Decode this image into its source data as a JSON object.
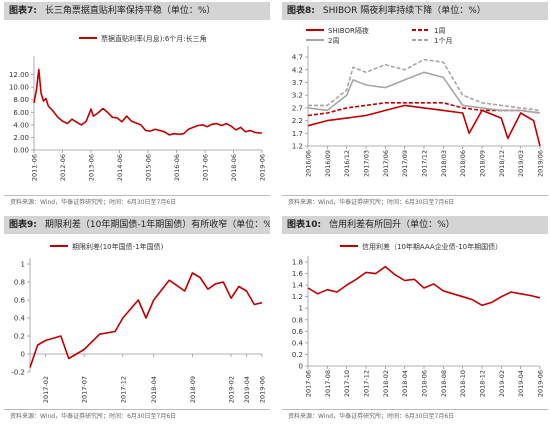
{
  "panels": [
    {
      "number": "图表7:",
      "title": "长三角票据直贴利率保持平稳（单位：%）",
      "source": "资料来源：Wind，华泰证券研究所；时间：6月30日至7月6日"
    },
    {
      "number": "图表8:",
      "title": "SHIBOR 隔夜利率持续下降（单位：%）",
      "source": "资料来源：Wind，华泰证券研究所；时间：6月30日至7月6日"
    },
    {
      "number": "图表9:",
      "title": "期限利差（10年期国债-1年期国债）有所收窄（单位：%）",
      "source": "资料来源：Wind，华泰证券研究所；时间：6月30日至7月6日"
    },
    {
      "number": "图表10:",
      "title": "信用利差有所回升（单位：%）",
      "source": "资料来源：Wind，华泰证券研究所；时间：6月30日至7月6日"
    }
  ],
  "colors": {
    "red": "#c00000",
    "gray": "#a6a6a6",
    "axis": "#999999",
    "grid": "#d9d9d9"
  },
  "chart_data": [
    {
      "type": "line",
      "title": "",
      "legend_position": "top-center",
      "ylim": [
        0,
        14
      ],
      "yticks": [
        "0.00",
        "2.00",
        "4.00",
        "6.00",
        "8.00",
        "10.00",
        "12.00"
      ],
      "xticks": [
        "2011-06",
        "2012-06",
        "2013-06",
        "2014-06",
        "2015-06",
        "2016-06",
        "2017-06",
        "2018-06",
        "2019-06"
      ],
      "series": [
        {
          "name": "票据直贴利率(月息):6个月:长三角",
          "color": "#c00000",
          "x": [
            "2011-06",
            "2011-07",
            "2011-08",
            "2011-09",
            "2011-10",
            "2011-11",
            "2011-12",
            "2012-02",
            "2012-04",
            "2012-06",
            "2012-08",
            "2012-10",
            "2012-12",
            "2013-02",
            "2013-04",
            "2013-06",
            "2013-07",
            "2013-09",
            "2013-11",
            "2014-01",
            "2014-03",
            "2014-05",
            "2014-07",
            "2014-09",
            "2014-11",
            "2015-01",
            "2015-03",
            "2015-05",
            "2015-07",
            "2015-09",
            "2015-11",
            "2016-01",
            "2016-03",
            "2016-05",
            "2016-07",
            "2016-09",
            "2016-11",
            "2017-01",
            "2017-03",
            "2017-05",
            "2017-07",
            "2017-09",
            "2017-11",
            "2018-01",
            "2018-03",
            "2018-05",
            "2018-07",
            "2018-09",
            "2018-11",
            "2019-01",
            "2019-03",
            "2019-05",
            "2019-06"
          ],
          "values": [
            7.5,
            9.5,
            12.8,
            9.0,
            7.8,
            8.2,
            7.0,
            6.2,
            5.2,
            4.6,
            4.2,
            4.9,
            4.4,
            4.0,
            4.6,
            6.5,
            5.4,
            5.9,
            6.6,
            6.0,
            5.2,
            5.1,
            4.5,
            5.4,
            4.6,
            4.3,
            4.0,
            3.1,
            3.0,
            3.3,
            3.1,
            2.9,
            2.4,
            2.6,
            2.5,
            2.6,
            3.3,
            3.6,
            3.9,
            4.0,
            3.7,
            4.1,
            4.2,
            3.9,
            4.2,
            3.8,
            3.2,
            3.6,
            2.9,
            3.1,
            2.8,
            2.7,
            2.7
          ]
        }
      ]
    },
    {
      "type": "line",
      "title": "",
      "legend_position": "top",
      "ylim": [
        1.2,
        4.9
      ],
      "yticks": [
        "1.2",
        "1.7",
        "2.2",
        "2.7",
        "3.2",
        "3.7",
        "4.2",
        "4.7"
      ],
      "xticks": [
        "2016/06",
        "2016/09",
        "2016/12",
        "2017/03",
        "2017/06",
        "2017/09",
        "2017/12",
        "2018/03",
        "2018/06",
        "2018/09",
        "2018/12",
        "2019/03",
        "2019/06"
      ],
      "series": [
        {
          "name": "SHIBOR隔夜",
          "color": "#c00000",
          "dash": "solid",
          "x": [
            "2016/06",
            "2016/09",
            "2016/12",
            "2017/03",
            "2017/06",
            "2017/09",
            "2017/12",
            "2018/03",
            "2018/06",
            "2018/07",
            "2018/09",
            "2018/12",
            "2019/01",
            "2019/03",
            "2019/05",
            "2019/06"
          ],
          "values": [
            2.0,
            2.2,
            2.3,
            2.4,
            2.6,
            2.8,
            2.7,
            2.6,
            2.5,
            1.7,
            2.6,
            2.3,
            1.5,
            2.5,
            2.2,
            1.2
          ]
        },
        {
          "name": "1周",
          "color": "#c00000",
          "dash": "dashed",
          "x": [
            "2016/06",
            "2016/09",
            "2016/12",
            "2017/03",
            "2017/06",
            "2017/09",
            "2017/12",
            "2018/03",
            "2018/06",
            "2018/09",
            "2018/12",
            "2019/03",
            "2019/06"
          ],
          "values": [
            2.4,
            2.5,
            2.7,
            2.8,
            2.9,
            2.9,
            2.9,
            2.9,
            2.7,
            2.6,
            2.6,
            2.6,
            2.5
          ]
        },
        {
          "name": "2周",
          "color": "#a6a6a6",
          "dash": "solid",
          "x": [
            "2016/06",
            "2016/09",
            "2016/12",
            "2017/01",
            "2017/03",
            "2017/06",
            "2017/09",
            "2017/12",
            "2018/03",
            "2018/06",
            "2018/09",
            "2018/12",
            "2019/03",
            "2019/06"
          ],
          "values": [
            2.7,
            2.6,
            3.2,
            3.8,
            3.6,
            3.5,
            3.8,
            4.1,
            3.9,
            2.8,
            2.7,
            2.6,
            2.6,
            2.5
          ]
        },
        {
          "name": "1个月",
          "color": "#a6a6a6",
          "dash": "dashed",
          "x": [
            "2016/06",
            "2016/09",
            "2016/12",
            "2017/01",
            "2017/03",
            "2017/06",
            "2017/09",
            "2017/12",
            "2018/03",
            "2018/06",
            "2018/09",
            "2018/12",
            "2019/03",
            "2019/06"
          ],
          "values": [
            2.8,
            2.8,
            3.4,
            4.3,
            4.1,
            4.4,
            4.2,
            4.6,
            4.5,
            3.2,
            2.9,
            2.8,
            2.7,
            2.6
          ]
        }
      ]
    },
    {
      "type": "line",
      "title": "",
      "legend_position": "top-left",
      "ylim": [
        -0.2,
        1.0
      ],
      "yticks": [
        "-0.2",
        "0",
        "0.2",
        "0.4",
        "0.6",
        "0.8",
        "1"
      ],
      "xticks": [
        "2017-02",
        "2017-07",
        "2017-12",
        "2018-04",
        "2018-09",
        "2019-02",
        "2019-04",
        "2019-06"
      ],
      "series": [
        {
          "name": "期限利差(10年国债-1年国债)",
          "color": "#c00000",
          "x": [
            "2016-12",
            "2017-01",
            "2017-02",
            "2017-04",
            "2017-05",
            "2017-07",
            "2017-09",
            "2017-11",
            "2017-12",
            "2018-02",
            "2018-03",
            "2018-04",
            "2018-06",
            "2018-08",
            "2018-09",
            "2018-10",
            "2018-11",
            "2018-12",
            "2019-01",
            "2019-02",
            "2019-03",
            "2019-04",
            "2019-05",
            "2019-06"
          ],
          "values": [
            -0.15,
            0.1,
            0.15,
            0.2,
            -0.05,
            0.05,
            0.22,
            0.25,
            0.4,
            0.6,
            0.4,
            0.6,
            0.82,
            0.7,
            0.9,
            0.85,
            0.72,
            0.78,
            0.8,
            0.62,
            0.75,
            0.7,
            0.55,
            0.57
          ]
        }
      ]
    },
    {
      "type": "line",
      "title": "",
      "legend_position": "top-center",
      "ylim": [
        0,
        1.8
      ],
      "yticks": [
        "0",
        "0.2",
        "0.4",
        "0.6",
        "0.8",
        "1",
        "1.2",
        "1.4",
        "1.6",
        "1.8"
      ],
      "xticks": [
        "2017-06",
        "2017-08",
        "2017-10",
        "2017-12",
        "2018-02",
        "2018-04",
        "2018-06",
        "2018-08",
        "2018-10",
        "2018-12",
        "2019-02",
        "2019-04",
        "2019-06"
      ],
      "series": [
        {
          "name": "信用利差（10年期AAA企业债-10年期国债）",
          "color": "#c00000",
          "x": [
            "2017-06",
            "2017-07",
            "2017-08",
            "2017-09",
            "2017-10",
            "2017-11",
            "2017-12",
            "2018-01",
            "2018-02",
            "2018-03",
            "2018-04",
            "2018-05",
            "2018-06",
            "2018-07",
            "2018-08",
            "2018-09",
            "2018-10",
            "2018-11",
            "2018-12",
            "2019-01",
            "2019-02",
            "2019-03",
            "2019-04",
            "2019-05",
            "2019-06"
          ],
          "values": [
            1.35,
            1.25,
            1.32,
            1.28,
            1.4,
            1.5,
            1.62,
            1.6,
            1.72,
            1.58,
            1.48,
            1.5,
            1.35,
            1.42,
            1.3,
            1.25,
            1.2,
            1.15,
            1.05,
            1.1,
            1.2,
            1.28,
            1.25,
            1.22,
            1.18
          ]
        }
      ]
    }
  ]
}
